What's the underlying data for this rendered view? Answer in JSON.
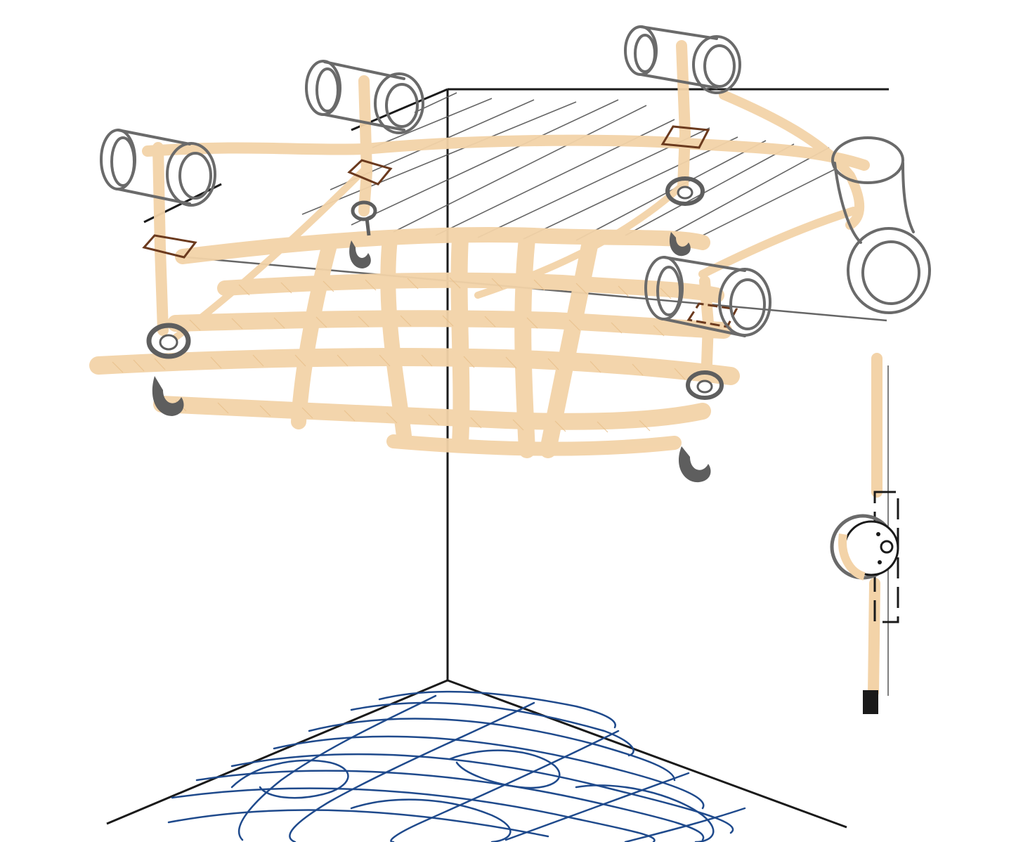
{
  "palette": {
    "background": "#ffffff",
    "wall_lines": "#1a1a1a",
    "rope": "#f3d3a8",
    "rope_dark": "#e8bf8a",
    "hardware": "#6a6a6a",
    "hook": "#5e5e5e",
    "strap_buckle": "#6b3a1e",
    "floor_mat": "#1f4a8c",
    "shade_lines": "#555555"
  },
  "elements": {
    "room_corner": "wall-corner-lines",
    "net": "cargo-net",
    "anchors": [
      "pipe-anchor-front-left",
      "pipe-anchor-back-left",
      "pipe-anchor-back-right",
      "pipe-anchor-right-elbow",
      "pipe-anchor-front-right"
    ],
    "hooks": [
      "hook-front-left",
      "hook-back-left",
      "hook-back-right",
      "hook-front-right"
    ],
    "pulley": "wall-pulley-cleat",
    "floor": "floor-mat-scribble"
  }
}
